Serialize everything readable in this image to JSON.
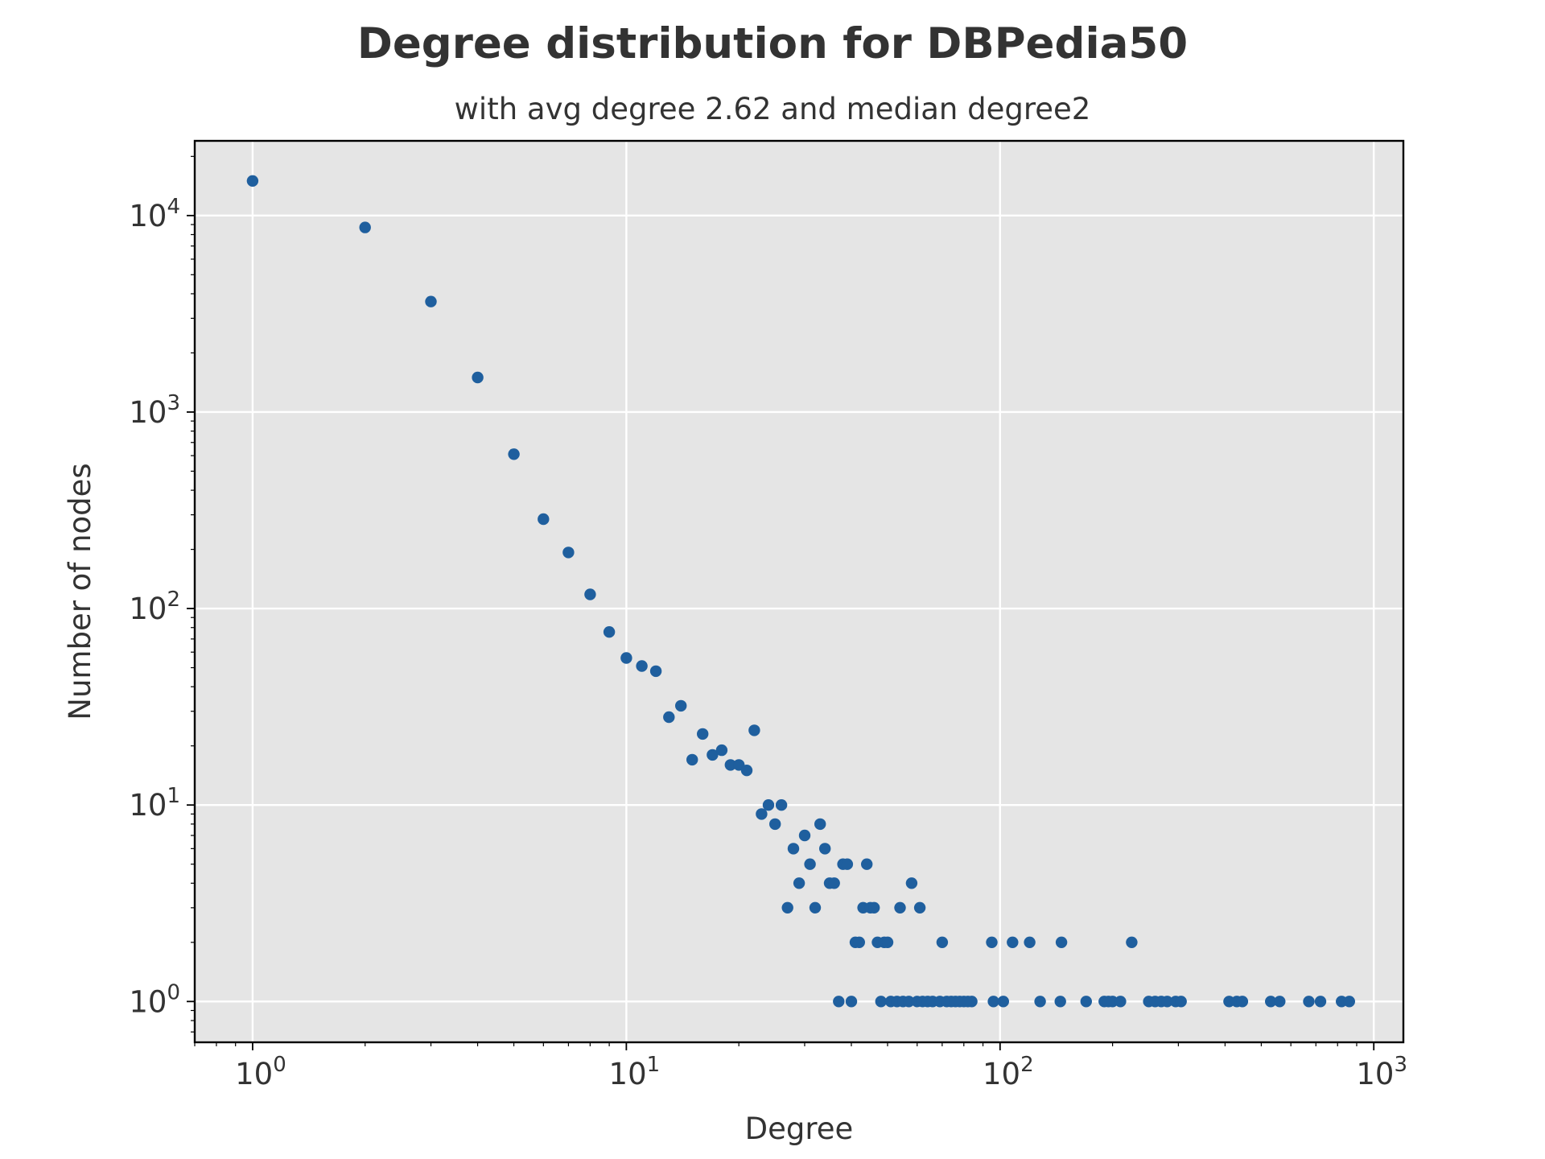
{
  "chart_data": {
    "type": "scatter",
    "title": "Degree distribution for DBPedia50",
    "subtitle": "with avg degree 2.62 and median degree2",
    "xlabel": "Degree",
    "ylabel": "Number of nodes",
    "xscale": "log",
    "yscale": "log",
    "xlim": [
      0.7,
      1200
    ],
    "ylim": [
      0.62,
      24000
    ],
    "grid": true,
    "background_color": "#e5e5e5",
    "marker_color": "#1f5f9e",
    "x_ticks": [
      {
        "base": "10",
        "exp": "0"
      },
      {
        "base": "10",
        "exp": "1"
      },
      {
        "base": "10",
        "exp": "2"
      },
      {
        "base": "10",
        "exp": "3"
      }
    ],
    "y_ticks": [
      {
        "base": "10",
        "exp": "0"
      },
      {
        "base": "10",
        "exp": "1"
      },
      {
        "base": "10",
        "exp": "2"
      },
      {
        "base": "10",
        "exp": "3"
      },
      {
        "base": "10",
        "exp": "4"
      }
    ],
    "points": [
      [
        1,
        15000
      ],
      [
        2,
        8700
      ],
      [
        3,
        3650
      ],
      [
        4,
        1500
      ],
      [
        5,
        610
      ],
      [
        6,
        285
      ],
      [
        7,
        193
      ],
      [
        8,
        118
      ],
      [
        9,
        76
      ],
      [
        10,
        56
      ],
      [
        11,
        51
      ],
      [
        12,
        48
      ],
      [
        13,
        28
      ],
      [
        14,
        32
      ],
      [
        15,
        17
      ],
      [
        16,
        23
      ],
      [
        17,
        18
      ],
      [
        18,
        19
      ],
      [
        19,
        16
      ],
      [
        20,
        16
      ],
      [
        21,
        15
      ],
      [
        22,
        24
      ],
      [
        23,
        9
      ],
      [
        24,
        10
      ],
      [
        25,
        8
      ],
      [
        26,
        10
      ],
      [
        27,
        3
      ],
      [
        28,
        6
      ],
      [
        29,
        4
      ],
      [
        30,
        7
      ],
      [
        31,
        5
      ],
      [
        32,
        3
      ],
      [
        33,
        8
      ],
      [
        34,
        6
      ],
      [
        35,
        4
      ],
      [
        36,
        4
      ],
      [
        37,
        1
      ],
      [
        38,
        5
      ],
      [
        39,
        5
      ],
      [
        40,
        1
      ],
      [
        41,
        2
      ],
      [
        42,
        2
      ],
      [
        43,
        3
      ],
      [
        44,
        5
      ],
      [
        45,
        3
      ],
      [
        46,
        3
      ],
      [
        47,
        2
      ],
      [
        48,
        1
      ],
      [
        49,
        2
      ],
      [
        50,
        2
      ],
      [
        51,
        1
      ],
      [
        53,
        1
      ],
      [
        54,
        3
      ],
      [
        55,
        1
      ],
      [
        57,
        1
      ],
      [
        58,
        4
      ],
      [
        60,
        1
      ],
      [
        61,
        3
      ],
      [
        62,
        1
      ],
      [
        64,
        1
      ],
      [
        66,
        1
      ],
      [
        69,
        1
      ],
      [
        70,
        2
      ],
      [
        72,
        1
      ],
      [
        74,
        1
      ],
      [
        76,
        1
      ],
      [
        78,
        1
      ],
      [
        80,
        1
      ],
      [
        82,
        1
      ],
      [
        84,
        1
      ],
      [
        95,
        2
      ],
      [
        96,
        1
      ],
      [
        102,
        1
      ],
      [
        108,
        2
      ],
      [
        120,
        2
      ],
      [
        128,
        1
      ],
      [
        145,
        1
      ],
      [
        146,
        2
      ],
      [
        170,
        1
      ],
      [
        190,
        1
      ],
      [
        195,
        1
      ],
      [
        200,
        1
      ],
      [
        210,
        1
      ],
      [
        225,
        2
      ],
      [
        250,
        1
      ],
      [
        260,
        1
      ],
      [
        270,
        1
      ],
      [
        280,
        1
      ],
      [
        295,
        1
      ],
      [
        305,
        1
      ],
      [
        410,
        1
      ],
      [
        430,
        1
      ],
      [
        445,
        1
      ],
      [
        530,
        1
      ],
      [
        560,
        1
      ],
      [
        670,
        1
      ],
      [
        720,
        1
      ],
      [
        820,
        1
      ],
      [
        860,
        1
      ]
    ]
  }
}
